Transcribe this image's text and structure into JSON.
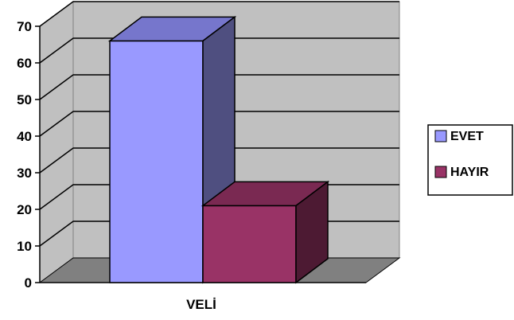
{
  "chart_data": {
    "type": "bar",
    "style": "3d-clustered-column",
    "categories": [
      "VELİ"
    ],
    "series": [
      {
        "name": "EVET",
        "values": [
          66
        ],
        "color": "#9999ff",
        "side_color": "#4f4f80",
        "top_color": "#7676cc"
      },
      {
        "name": "HAYIR",
        "values": [
          21
        ],
        "color": "#993366",
        "side_color": "#4d1a33",
        "top_color": "#7a2952"
      }
    ],
    "ylim": [
      0,
      70
    ],
    "yticks": [
      "0",
      "10",
      "20",
      "30",
      "40",
      "50",
      "60",
      "70"
    ],
    "grid": true,
    "legend": "right",
    "colors": {
      "wall": "#c0c0c0",
      "floor": "#808080",
      "gridline": "#000000"
    }
  }
}
